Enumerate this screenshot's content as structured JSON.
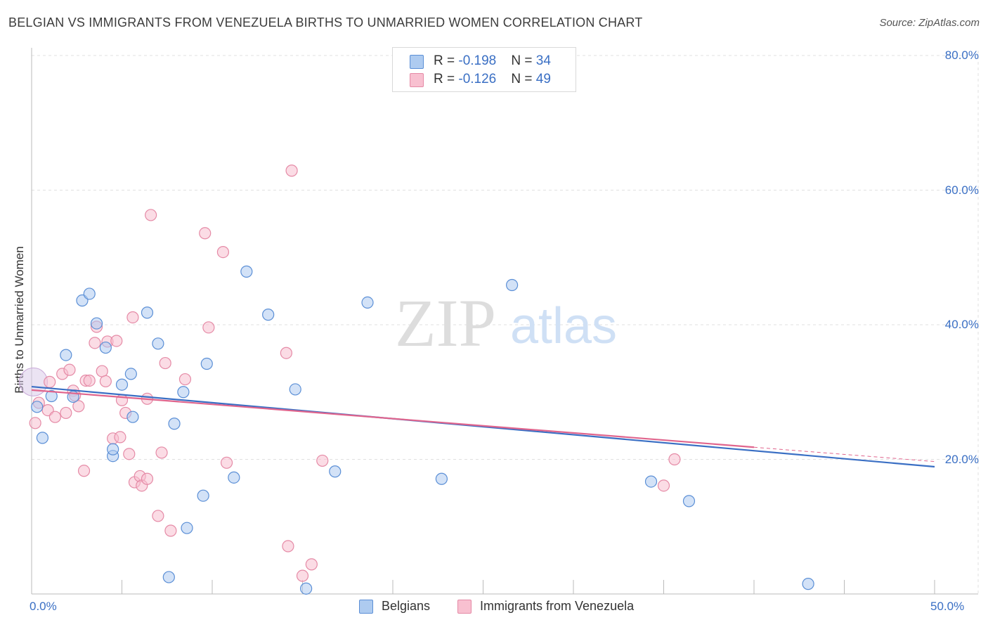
{
  "title": "BELGIAN VS IMMIGRANTS FROM VENEZUELA BIRTHS TO UNMARRIED WOMEN CORRELATION CHART",
  "source": "Source: ZipAtlas.com",
  "watermark": {
    "zip": "ZIP",
    "atlas": "atlas"
  },
  "legend": {
    "rows": [
      {
        "r_label": "R = ",
        "r_value": "-0.198",
        "n_label": "N = ",
        "n_value": "34"
      },
      {
        "r_label": "R = ",
        "r_value": "-0.126",
        "n_label": "N = ",
        "n_value": "49"
      }
    ]
  },
  "bottom_legend": {
    "belgians": "Belgians",
    "venezuela": "Immigrants from Venezuela"
  },
  "axis": {
    "ylabel": "Births to Unmarried Women",
    "x_min_label": "0.0%",
    "x_max_label": "50.0%",
    "y_ticks": [
      "80.0%",
      "60.0%",
      "40.0%",
      "20.0%"
    ]
  },
  "colors": {
    "belgians_fill": "#aecbf0",
    "belgians_stroke": "#5b8fd6",
    "belgians_line": "#3a6fc4",
    "venezuela_fill": "#f8c0d0",
    "venezuela_stroke": "#e58aa6",
    "venezuela_line": "#e0658d"
  },
  "chart_data": {
    "type": "scatter",
    "title": "BELGIAN VS IMMIGRANTS FROM VENEZUELA BIRTHS TO UNMARRIED WOMEN CORRELATION CHART",
    "xlabel": "",
    "ylabel": "Births to Unmarried Women",
    "xlim": [
      0,
      50
    ],
    "ylim": [
      0,
      80
    ],
    "grid": true,
    "legend_position": "top-center",
    "series": [
      {
        "name": "Belgians",
        "R": -0.198,
        "N": 34,
        "trend": {
          "x": [
            0,
            50
          ],
          "y": [
            30.8,
            18.9
          ]
        },
        "x": [
          0.3,
          0.6,
          1.1,
          1.9,
          2.3,
          2.8,
          3.2,
          3.6,
          4.1,
          4.5,
          4.5,
          5.0,
          5.5,
          5.6,
          6.4,
          7.0,
          7.6,
          7.9,
          8.4,
          8.6,
          9.5,
          9.7,
          11.2,
          11.9,
          13.1,
          14.6,
          15.2,
          16.8,
          18.6,
          22.7,
          26.6,
          34.3,
          36.4,
          43.0
        ],
        "y": [
          27.8,
          23.2,
          29.4,
          35.5,
          29.3,
          43.6,
          44.6,
          40.2,
          36.6,
          20.5,
          21.5,
          31.1,
          32.7,
          26.3,
          41.8,
          37.2,
          2.5,
          25.3,
          30.0,
          9.8,
          14.6,
          34.2,
          17.3,
          47.9,
          41.5,
          30.4,
          0.8,
          18.2,
          43.3,
          17.1,
          45.9,
          16.7,
          13.8,
          1.5
        ]
      },
      {
        "name": "Immigrants from Venezuela",
        "R": -0.126,
        "N": 49,
        "trend": {
          "x": [
            0,
            40
          ],
          "y": [
            30.3,
            21.8
          ]
        },
        "x": [
          0.2,
          0.4,
          0.9,
          1.0,
          1.3,
          1.7,
          1.9,
          2.1,
          2.3,
          2.4,
          2.6,
          2.9,
          3.0,
          3.2,
          3.5,
          3.6,
          3.9,
          4.1,
          4.2,
          4.5,
          4.7,
          4.9,
          5.0,
          5.2,
          5.4,
          5.6,
          5.7,
          6.0,
          6.1,
          6.4,
          6.4,
          6.6,
          7.0,
          7.2,
          7.4,
          7.7,
          8.5,
          9.6,
          9.8,
          10.6,
          10.8,
          14.1,
          14.2,
          14.4,
          15.0,
          15.5,
          16.1,
          35.0,
          35.6
        ],
        "y": [
          25.4,
          28.4,
          27.3,
          31.5,
          26.3,
          32.7,
          26.9,
          33.3,
          30.2,
          29.5,
          27.9,
          18.3,
          31.7,
          31.7,
          37.3,
          39.7,
          33.1,
          31.6,
          37.5,
          23.1,
          37.6,
          23.3,
          28.8,
          26.9,
          20.8,
          41.1,
          16.6,
          17.5,
          16.1,
          29.0,
          17.1,
          56.3,
          11.6,
          21.0,
          34.3,
          9.4,
          31.9,
          53.6,
          39.6,
          50.8,
          19.5,
          35.8,
          7.1,
          62.9,
          2.7,
          4.4,
          19.8,
          16.1,
          20.0
        ]
      }
    ]
  }
}
